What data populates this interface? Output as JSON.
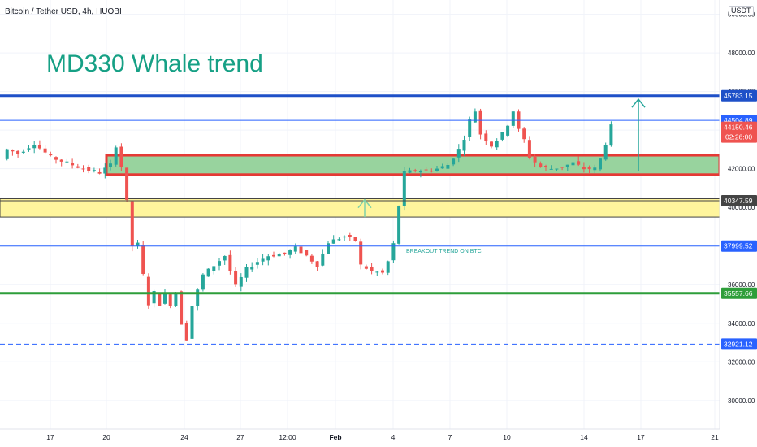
{
  "header": {
    "title": "Bitcoin / Tether USD, 4h, HUOBI",
    "currency": "USDT"
  },
  "chart_data": {
    "type": "candlestick",
    "title": "MD330 Whale trend",
    "annotation": "BREAKOUT TREND ON BTC",
    "x_ticks": [
      "17",
      "20",
      "24",
      "27",
      "12:00",
      "Feb",
      "4",
      "7",
      "10",
      "14",
      "17",
      "21"
    ],
    "y_ticks": [
      30000,
      32000,
      34000,
      36000,
      38000,
      40000,
      42000,
      44000,
      46000,
      48000,
      50000
    ],
    "y_tick_labels": [
      "30000.00",
      "32000.00",
      "34000.00",
      "36000.00",
      "38000.00",
      "40000.00",
      "42000.00",
      "44000.00",
      "46000.00",
      "48000.00",
      "50000.00"
    ],
    "ylim": [
      28800,
      51000
    ],
    "grid": true,
    "price_lines": [
      {
        "label": "45783.15",
        "value": 45783.15,
        "color": "#1e50c8",
        "style": "solid",
        "weight": "thick"
      },
      {
        "label": "44504.89",
        "value": 44504.89,
        "color": "#2962ff",
        "style": "solid",
        "weight": "thin"
      },
      {
        "label": "40347.59",
        "value": 40347.59,
        "color": "#444444",
        "style": "solid",
        "weight": "thin"
      },
      {
        "label": "37999.52",
        "value": 37999.52,
        "color": "#2962ff",
        "style": "solid",
        "weight": "thin"
      },
      {
        "label": "35557.66",
        "value": 35557.66,
        "color": "#2e9e3a",
        "style": "solid",
        "weight": "thick"
      },
      {
        "label": "32921.12",
        "value": 32921.12,
        "color": "#2962ff",
        "style": "dashed",
        "weight": "thin"
      }
    ],
    "current_price": {
      "label": "44150.46",
      "value": 44150.46,
      "countdown": "02:26:00",
      "color": "#ef5350"
    },
    "zones": [
      {
        "name": "green-zone",
        "from": 41700,
        "to": 42700,
        "fill": "#98d39e",
        "border": "#e53935"
      },
      {
        "name": "yellow-zone",
        "from": 39500,
        "to": 40450,
        "fill": "#fff59d",
        "border": "#444444"
      }
    ],
    "arrows": [
      {
        "x": "Feb +1",
        "from": 39500,
        "to": 40400,
        "color": "#7ed0a8"
      },
      {
        "x": "16",
        "from": 41900,
        "to": 45600,
        "color": "#26a69a"
      }
    ],
    "path": [
      [
        0,
        42500
      ],
      [
        1,
        43000
      ],
      [
        3,
        42800
      ],
      [
        6,
        43300
      ],
      [
        9,
        42600
      ],
      [
        12,
        42300
      ],
      [
        15,
        42000
      ],
      [
        18,
        41800
      ],
      [
        20,
        42200
      ],
      [
        21,
        43200
      ],
      [
        22,
        42100
      ],
      [
        23,
        40300
      ],
      [
        24,
        38000
      ],
      [
        25,
        38100
      ],
      [
        26,
        36500
      ],
      [
        27,
        35000
      ],
      [
        28,
        35600
      ],
      [
        29,
        35000
      ],
      [
        30,
        35500
      ],
      [
        31,
        35000
      ],
      [
        32,
        35600
      ],
      [
        33,
        34000
      ],
      [
        34,
        33200
      ],
      [
        35,
        34900
      ],
      [
        37,
        36500
      ],
      [
        39,
        37000
      ],
      [
        41,
        37500
      ],
      [
        43,
        35900
      ],
      [
        45,
        36800
      ],
      [
        47,
        37200
      ],
      [
        49,
        37500
      ],
      [
        52,
        37600
      ],
      [
        54,
        37900
      ],
      [
        56,
        37500
      ],
      [
        58,
        37000
      ],
      [
        60,
        38200
      ],
      [
        63,
        38500
      ],
      [
        65,
        38300
      ],
      [
        66,
        37000
      ],
      [
        68,
        36700
      ],
      [
        70,
        36600
      ],
      [
        71,
        37200
      ],
      [
        72,
        38100
      ],
      [
        73,
        40100
      ],
      [
        74,
        41800
      ],
      [
        76,
        41900
      ],
      [
        78,
        41900
      ],
      [
        80,
        42000
      ],
      [
        82,
        42200
      ],
      [
        84,
        43000
      ],
      [
        85,
        43600
      ],
      [
        86,
        44500
      ],
      [
        87,
        45000
      ],
      [
        88,
        43800
      ],
      [
        90,
        43200
      ],
      [
        92,
        43800
      ],
      [
        93,
        44300
      ],
      [
        94,
        45000
      ],
      [
        95,
        44000
      ],
      [
        96,
        43500
      ],
      [
        97,
        42600
      ],
      [
        99,
        42100
      ],
      [
        101,
        42000
      ],
      [
        103,
        42100
      ],
      [
        105,
        42300
      ],
      [
        107,
        42000
      ],
      [
        109,
        42000
      ],
      [
        110,
        42500
      ],
      [
        111,
        43300
      ],
      [
        112,
        44200
      ]
    ]
  }
}
